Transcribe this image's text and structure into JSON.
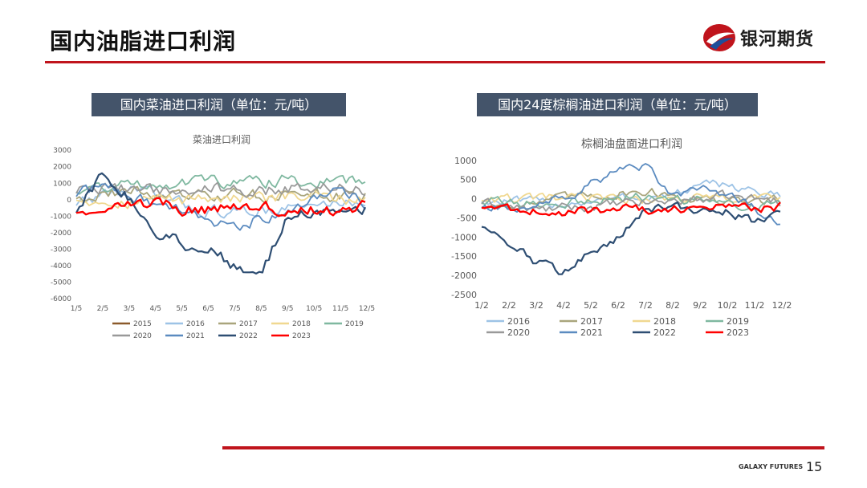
{
  "header": {
    "title": "国内油脂进口利润",
    "brand_name": "银河期货"
  },
  "footer": {
    "brand": "GALAXY FUTURES",
    "page_number": "15"
  },
  "colors": {
    "accent": "#c0141c",
    "label_bg": "#44546a"
  },
  "sections": [
    {
      "label": "国内菜油进口利润（单位：元/吨）"
    },
    {
      "label": "国内24度棕榈油进口利润（单位：元/吨）"
    }
  ],
  "chart_data": [
    {
      "type": "line",
      "title": "菜油进口利润",
      "xlabel": "",
      "ylabel": "",
      "ylim": [
        -6000,
        3000
      ],
      "yticks": [
        3000,
        2000,
        1000,
        0,
        -1000,
        -2000,
        -3000,
        -4000,
        -5000,
        -6000
      ],
      "xticks": [
        "1/5",
        "2/5",
        "3/5",
        "4/5",
        "5/5",
        "6/5",
        "7/5",
        "8/5",
        "9/5",
        "10/5",
        "11/5",
        "12/5"
      ],
      "grid": false,
      "legend_position": "bottom",
      "series": [
        {
          "name": "2015",
          "color": "#8b5a2b",
          "width": 1.3,
          "values": []
        },
        {
          "name": "2016",
          "color": "#9dc3e6",
          "width": 1.8,
          "values": [
            -200,
            300,
            600,
            200,
            -300,
            -700,
            -800,
            -600,
            -500,
            -400,
            -200,
            0
          ]
        },
        {
          "name": "2017",
          "color": "#a9a57c",
          "width": 1.8,
          "values": [
            200,
            400,
            500,
            300,
            200,
            100,
            300,
            200,
            400,
            300,
            200,
            300
          ]
        },
        {
          "name": "2018",
          "color": "#f0d890",
          "width": 1.8,
          "values": [
            100,
            0,
            -100,
            100,
            0,
            200,
            100,
            0,
            100,
            200,
            0,
            100
          ]
        },
        {
          "name": "2019",
          "color": "#7fb8a0",
          "width": 1.8,
          "values": [
            600,
            800,
            900,
            1000,
            1100,
            1200,
            1000,
            1100,
            1200,
            1100,
            1000,
            1200
          ]
        },
        {
          "name": "2020",
          "color": "#999999",
          "width": 1.8,
          "values": [
            500,
            700,
            600,
            500,
            600,
            700,
            600,
            500,
            700,
            800,
            900,
            500
          ]
        },
        {
          "name": "2021",
          "color": "#5b8bc0",
          "width": 1.8,
          "values": [
            300,
            800,
            400,
            -300,
            -800,
            -1500,
            -1800,
            -1000,
            -500,
            200,
            400,
            -200
          ]
        },
        {
          "name": "2022",
          "color": "#2e4e73",
          "width": 2.2,
          "values": [
            -700,
            1500,
            200,
            -2000,
            -2600,
            -3000,
            -4000,
            -4800,
            -800,
            -900,
            -600,
            -400
          ]
        },
        {
          "name": "2023",
          "color": "#ff0000",
          "width": 2.4,
          "values": [
            -700,
            -400,
            -200,
            -300,
            -500,
            -600,
            -400,
            -600,
            -500,
            -600,
            -700,
            -400
          ]
        }
      ]
    },
    {
      "type": "line",
      "title": "棕榈油盘面进口利润",
      "xlabel": "",
      "ylabel": "",
      "ylim": [
        -2500,
        1000
      ],
      "yticks": [
        1000,
        500,
        0,
        -500,
        -1000,
        -1500,
        -2000,
        -2500
      ],
      "xticks": [
        "1/2",
        "2/2",
        "3/2",
        "4/2",
        "5/2",
        "6/2",
        "7/2",
        "8/2",
        "9/2",
        "10/2",
        "11/2",
        "12/2"
      ],
      "grid": false,
      "legend_position": "bottom",
      "series": [
        {
          "name": "2016",
          "color": "#9dc3e6",
          "width": 1.8,
          "values": [
            -50,
            -80,
            -100,
            -120,
            -60,
            0,
            50,
            100,
            300,
            400,
            200,
            0
          ]
        },
        {
          "name": "2017",
          "color": "#a9a57c",
          "width": 1.8,
          "values": [
            -200,
            -150,
            -100,
            0,
            100,
            150,
            200,
            100,
            0,
            -100,
            -50,
            0
          ]
        },
        {
          "name": "2018",
          "color": "#f0d890",
          "width": 1.8,
          "values": [
            0,
            -20,
            -10,
            0,
            10,
            0,
            -20,
            0,
            20,
            0,
            -10,
            0
          ]
        },
        {
          "name": "2019",
          "color": "#7fb8a0",
          "width": 1.8,
          "values": [
            -50,
            -100,
            -150,
            -100,
            -50,
            0,
            50,
            0,
            -50,
            -100,
            -150,
            -100
          ]
        },
        {
          "name": "2020",
          "color": "#999999",
          "width": 1.8,
          "values": [
            -100,
            -200,
            -300,
            -250,
            -200,
            -150,
            -100,
            -50,
            0,
            50,
            0,
            -50
          ]
        },
        {
          "name": "2021",
          "color": "#5b8bc0",
          "width": 1.8,
          "values": [
            -200,
            -300,
            -100,
            0,
            400,
            700,
            800,
            100,
            300,
            100,
            -300,
            -700
          ]
        },
        {
          "name": "2022",
          "color": "#2e4e73",
          "width": 2.2,
          "values": [
            -700,
            -1100,
            -1700,
            -1900,
            -1300,
            -1000,
            -300,
            -200,
            -250,
            -300,
            -600,
            -300
          ]
        },
        {
          "name": "2023",
          "color": "#ff0000",
          "width": 2.4,
          "values": [
            -200,
            -250,
            -300,
            -350,
            -300,
            -250,
            -300,
            -250,
            -200,
            -200,
            -250,
            -200
          ]
        }
      ]
    }
  ]
}
